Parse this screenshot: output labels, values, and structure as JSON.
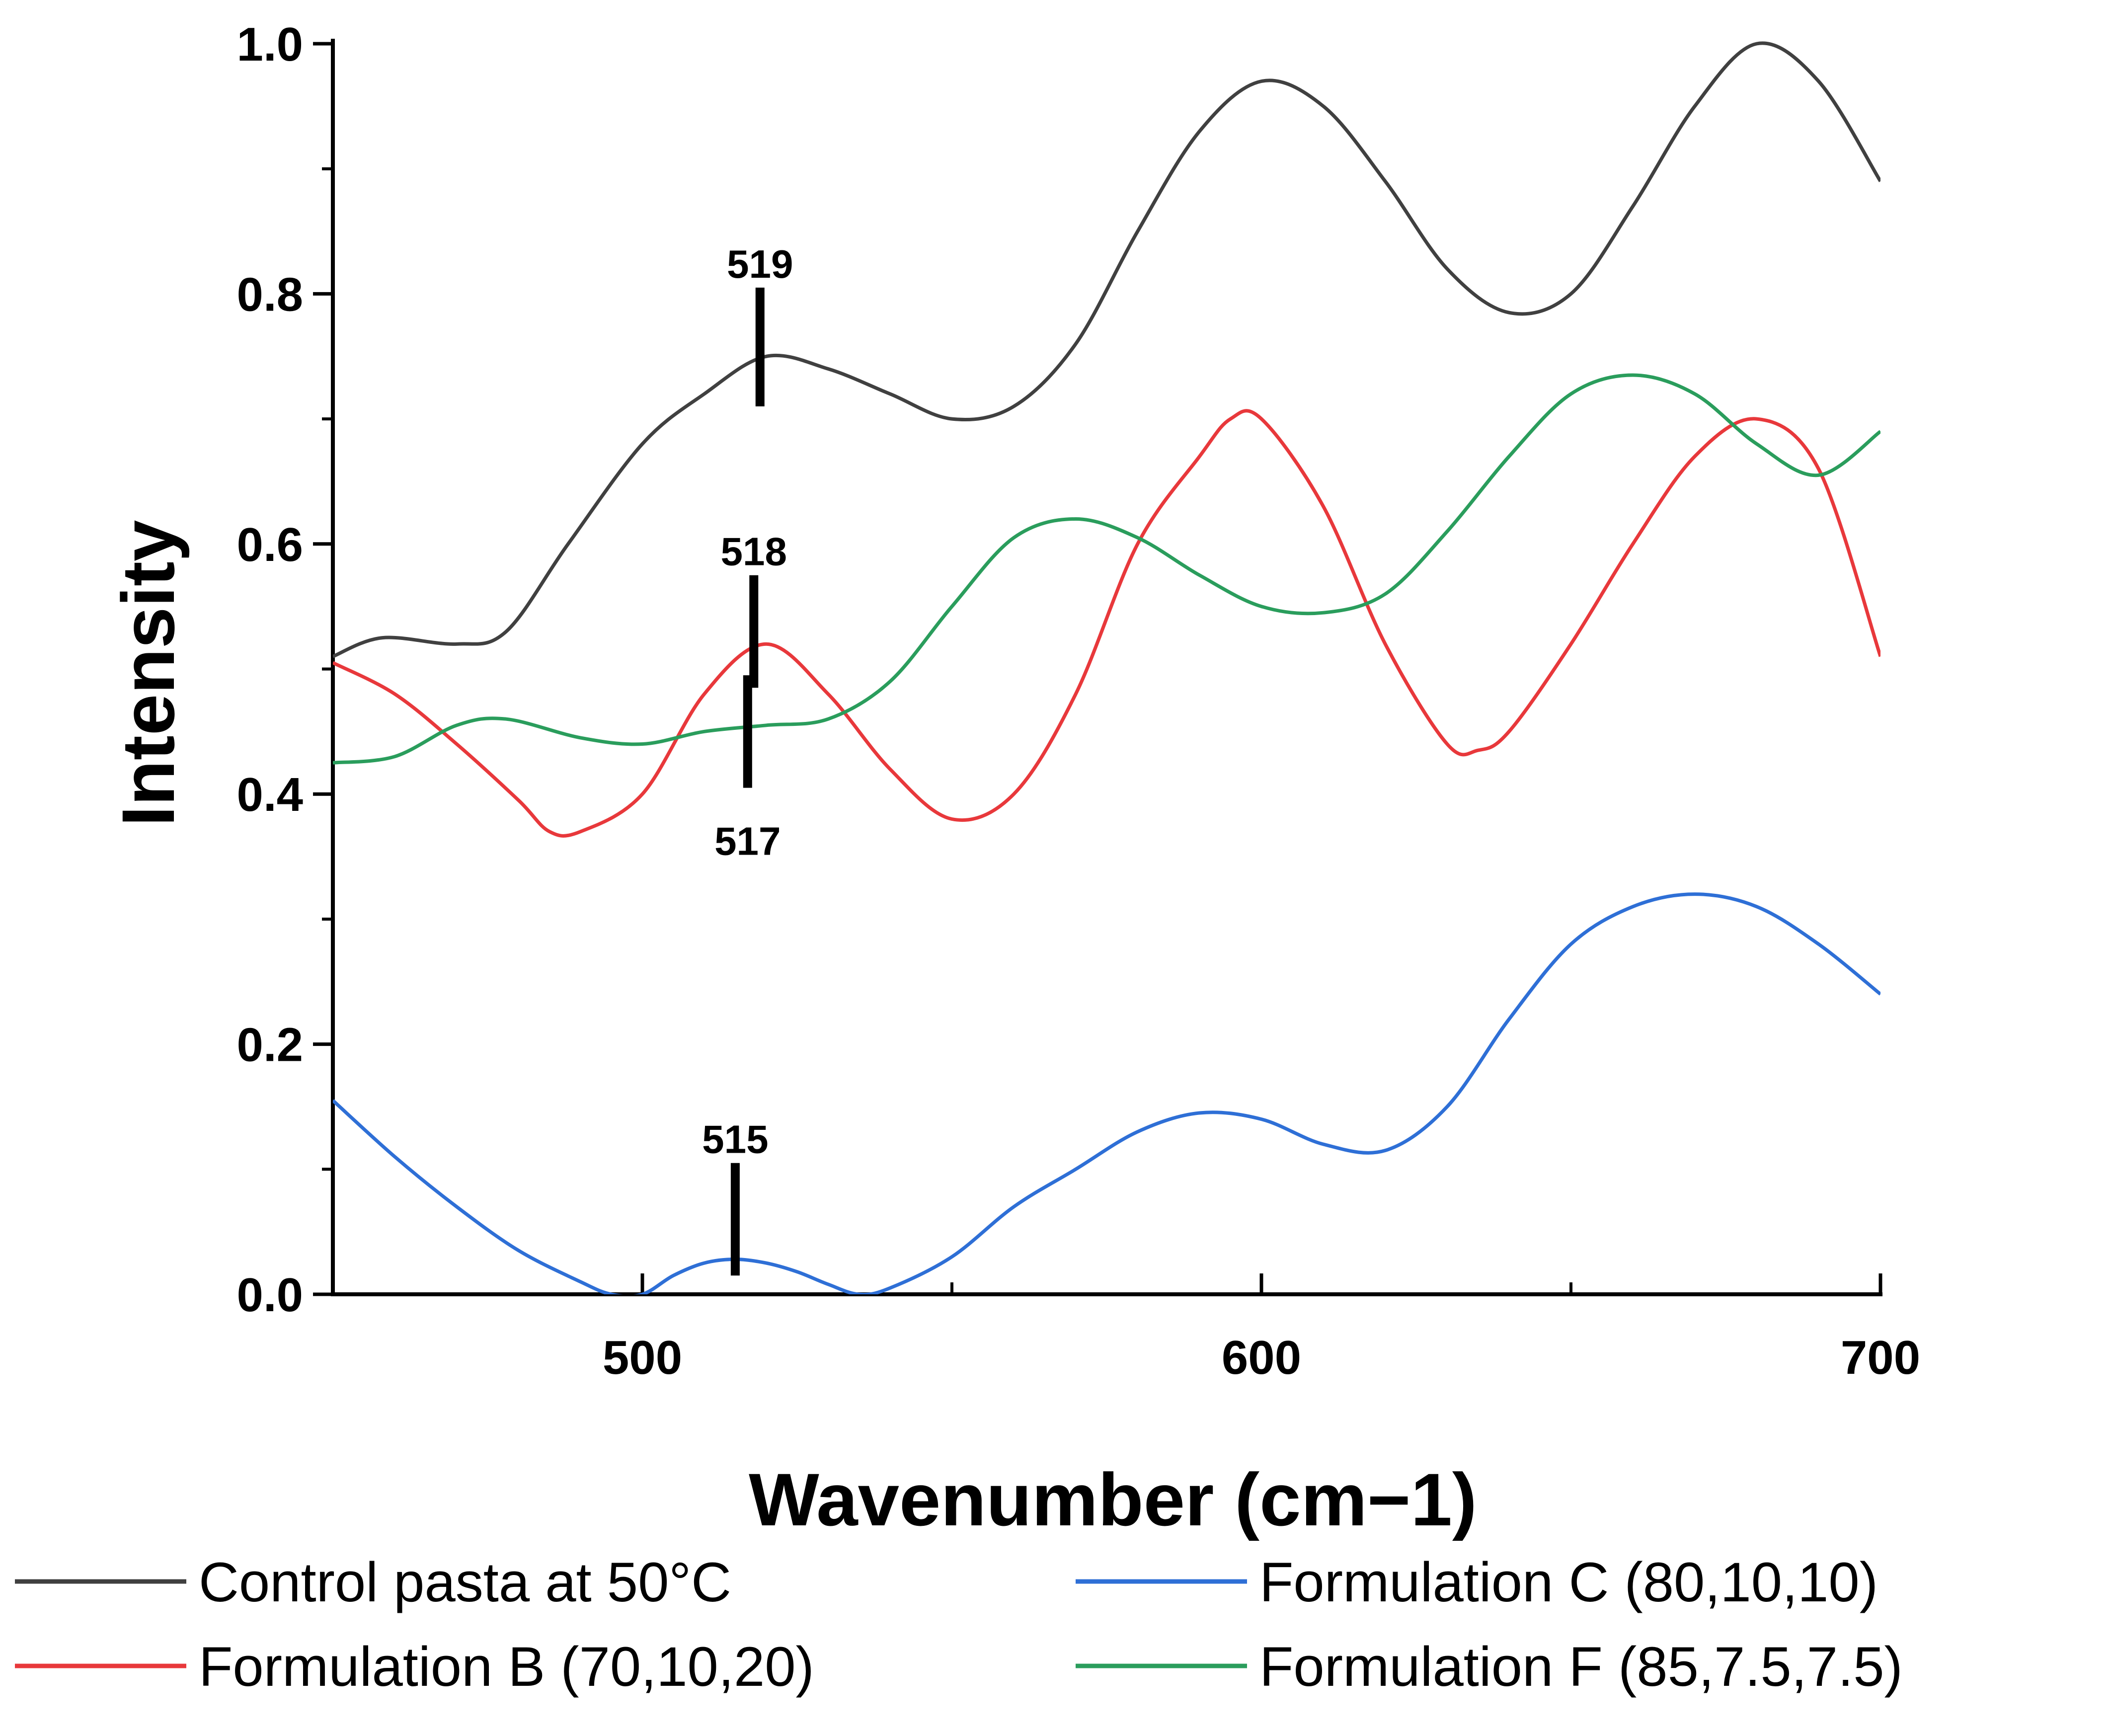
{
  "chart_data": {
    "type": "line",
    "title": "",
    "xlabel": "Wavenumber (cm−1)",
    "ylabel": "Intensity",
    "xlim": [
      450,
      700
    ],
    "ylim": [
      0.0,
      1.0
    ],
    "xticks": [
      500,
      600,
      700
    ],
    "xtick_labels": [
      "500",
      "600",
      "700"
    ],
    "yticks": [
      0.0,
      0.2,
      0.4,
      0.6,
      0.8,
      1.0
    ],
    "ytick_labels": [
      "0.0",
      "0.2",
      "0.4",
      "0.6",
      "0.8",
      "1.0"
    ],
    "x_minor_ticks": [
      550,
      650
    ],
    "y_minor_ticks": [
      0.1,
      0.3,
      0.5,
      0.7,
      0.9
    ],
    "grid": false,
    "legend_position": "bottom",
    "series": [
      {
        "name": "Control pasta at 50°C",
        "color": "#404040",
        "x": [
          450,
          458,
          470,
          478,
          488,
          500,
          510,
          520,
          530,
          540,
          550,
          560,
          570,
          580,
          590,
          600,
          610,
          620,
          630,
          640,
          650,
          660,
          670,
          680,
          690,
          700
        ],
        "y": [
          0.51,
          0.525,
          0.52,
          0.53,
          0.6,
          0.68,
          0.72,
          0.75,
          0.74,
          0.72,
          0.7,
          0.71,
          0.76,
          0.85,
          0.93,
          0.97,
          0.95,
          0.89,
          0.82,
          0.785,
          0.8,
          0.87,
          0.95,
          1.0,
          0.97,
          0.89
        ]
      },
      {
        "name": "Formulation B (70,10,20)",
        "color": "#e8383b",
        "x": [
          450,
          460,
          470,
          480,
          485,
          490,
          500,
          510,
          520,
          530,
          540,
          550,
          560,
          570,
          580,
          590,
          595,
          600,
          610,
          620,
          630,
          635,
          640,
          650,
          660,
          670,
          680,
          690,
          700
        ],
        "y": [
          0.505,
          0.48,
          0.44,
          0.395,
          0.37,
          0.37,
          0.4,
          0.48,
          0.52,
          0.48,
          0.42,
          0.38,
          0.4,
          0.48,
          0.6,
          0.67,
          0.7,
          0.7,
          0.63,
          0.52,
          0.44,
          0.435,
          0.45,
          0.52,
          0.6,
          0.67,
          0.7,
          0.66,
          0.51
        ]
      },
      {
        "name": "Formulation C (80,10,10)",
        "color": "#2e6fd6",
        "x": [
          450,
          460,
          470,
          480,
          490,
          495,
          500,
          505,
          510,
          515,
          520,
          525,
          530,
          535,
          540,
          550,
          560,
          570,
          580,
          590,
          600,
          610,
          620,
          630,
          640,
          650,
          660,
          670,
          680,
          690,
          700
        ],
        "y": [
          0.155,
          0.11,
          0.07,
          0.035,
          0.01,
          0.0,
          0.0,
          0.015,
          0.025,
          0.028,
          0.025,
          0.018,
          0.008,
          0.0,
          0.005,
          0.03,
          0.07,
          0.1,
          0.13,
          0.145,
          0.14,
          0.12,
          0.115,
          0.15,
          0.22,
          0.28,
          0.31,
          0.32,
          0.31,
          0.28,
          0.24
        ]
      },
      {
        "name": "Formulation F (85,7.5,7.5)",
        "color": "#2a9d5c",
        "x": [
          450,
          460,
          470,
          478,
          490,
          500,
          510,
          520,
          530,
          540,
          550,
          560,
          570,
          580,
          590,
          600,
          610,
          620,
          630,
          640,
          650,
          660,
          670,
          680,
          690,
          700
        ],
        "y": [
          0.425,
          0.43,
          0.455,
          0.46,
          0.445,
          0.44,
          0.45,
          0.455,
          0.46,
          0.49,
          0.55,
          0.605,
          0.62,
          0.605,
          0.575,
          0.55,
          0.545,
          0.56,
          0.61,
          0.67,
          0.72,
          0.735,
          0.72,
          0.68,
          0.655,
          0.69
        ]
      }
    ],
    "annotations": [
      {
        "label": "519",
        "x": 519,
        "y_from": 0.71,
        "y_to": 0.805,
        "label_position": "above"
      },
      {
        "label": "518",
        "x": 518,
        "y_from": 0.485,
        "y_to": 0.575,
        "label_position": "above"
      },
      {
        "label": "517",
        "x": 517,
        "y_from": 0.405,
        "y_to": 0.495,
        "label_position": "below"
      },
      {
        "label": "515",
        "x": 515,
        "y_from": 0.015,
        "y_to": 0.105,
        "label_position": "above"
      }
    ]
  }
}
